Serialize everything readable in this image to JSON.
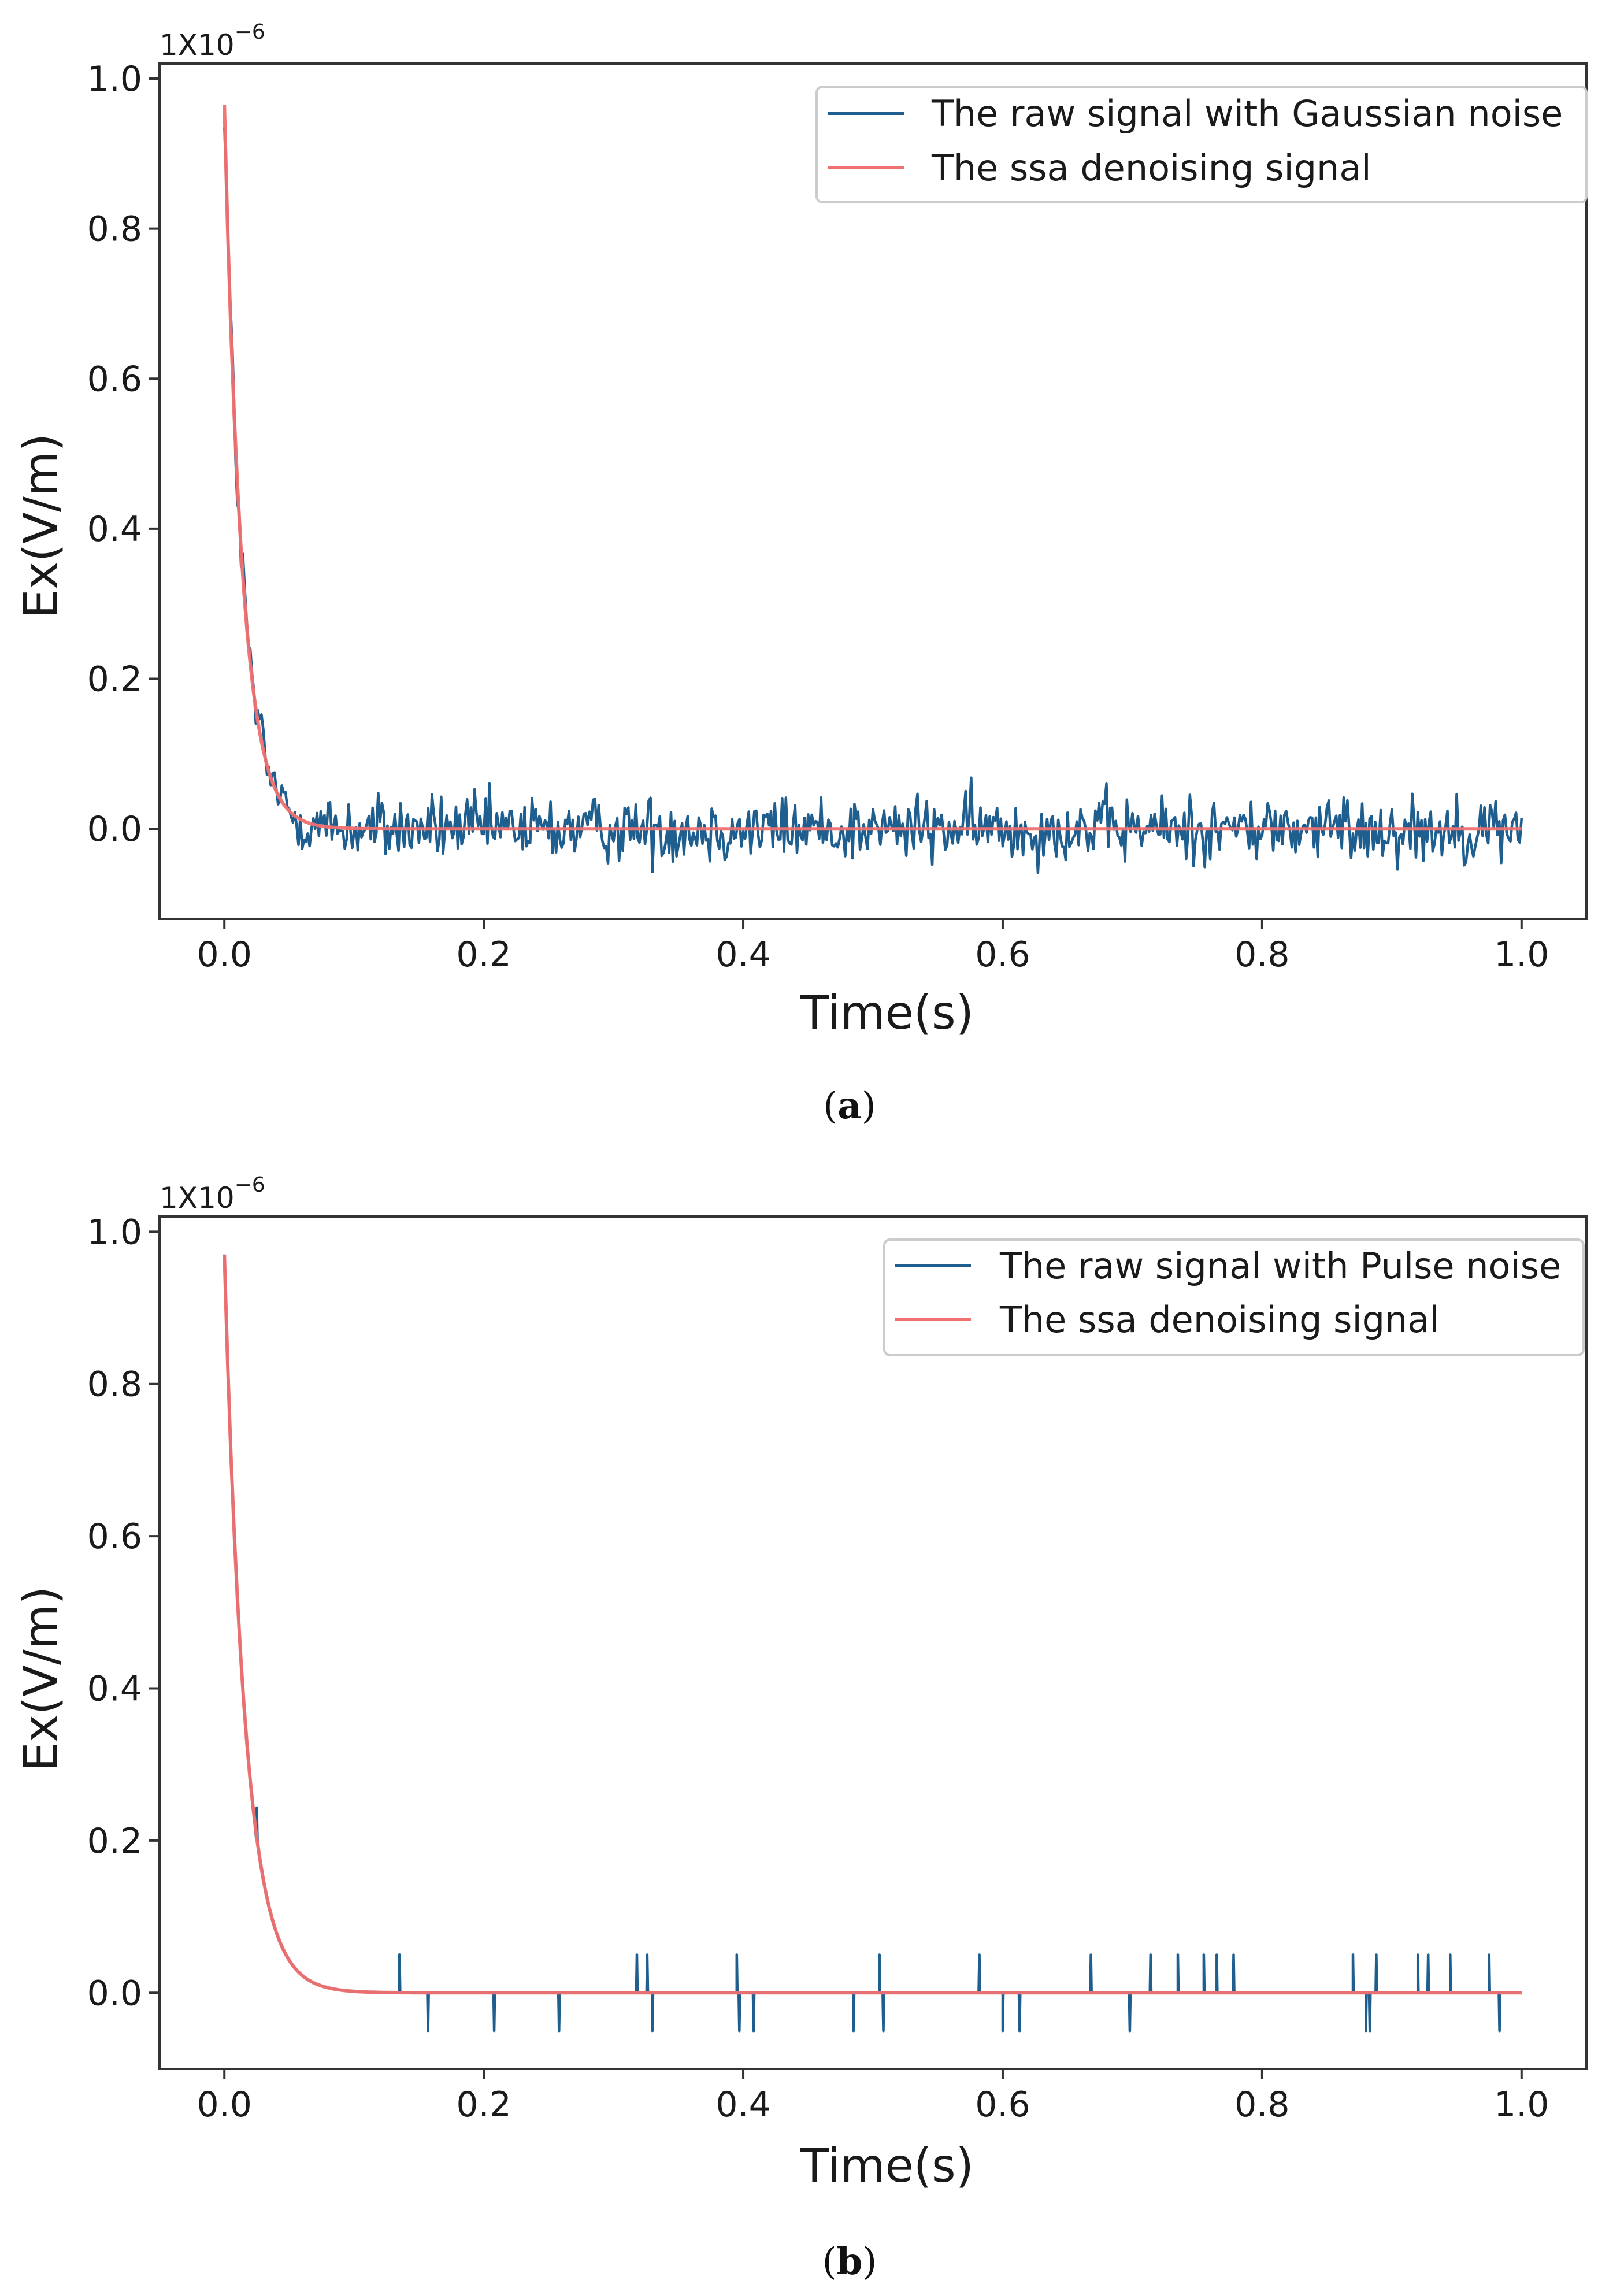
{
  "colors": {
    "raw_signal": "#1f5f8f",
    "denoised_signal": "#f07070",
    "axis": "#333333",
    "legend_border": "#cccccc"
  },
  "chart_data": [
    {
      "type": "line",
      "panel": "a",
      "caption": "a",
      "xlabel": "Time(s)",
      "ylabel": "Ex(V/m)",
      "y_multiplier_base": "1X10",
      "y_multiplier_exponent": "−6",
      "xlim": [
        -0.05,
        1.05
      ],
      "ylim": [
        -0.12,
        1.02
      ],
      "xticks": [
        0.0,
        0.2,
        0.4,
        0.6,
        0.8,
        1.0
      ],
      "xtick_labels": [
        "0.0",
        "0.2",
        "0.4",
        "0.6",
        "0.8",
        "1.0"
      ],
      "yticks": [
        0.0,
        0.2,
        0.4,
        0.6,
        0.8,
        1.0
      ],
      "ytick_labels": [
        "0.0",
        "0.2",
        "0.4",
        "0.6",
        "0.8",
        "1.0"
      ],
      "legend_position": "upper-right",
      "series": [
        {
          "name": "The raw signal with Gaussian noise",
          "color_key": "raw_signal",
          "model": "decay_plus_gaussian_noise",
          "amplitude": 0.965,
          "decay_time_s": 0.0135,
          "noise_std": 0.022,
          "noise_range": [
            -0.07,
            0.09
          ],
          "samples": 700,
          "x_range": [
            0.0,
            1.0
          ]
        },
        {
          "name": "The ssa denoising signal",
          "color_key": "denoised_signal",
          "model": "exponential_decay",
          "amplitude": 0.965,
          "decay_time_s": 0.0135,
          "samples": 400,
          "x_range": [
            0.0,
            1.0
          ]
        }
      ]
    },
    {
      "type": "line",
      "panel": "b",
      "caption": "b",
      "xlabel": "Time(s)",
      "ylabel": "Ex(V/m)",
      "y_multiplier_base": "1X10",
      "y_multiplier_exponent": "−6",
      "xlim": [
        -0.05,
        1.05
      ],
      "ylim": [
        -0.1,
        1.02
      ],
      "xticks": [
        0.0,
        0.2,
        0.4,
        0.6,
        0.8,
        1.0
      ],
      "xtick_labels": [
        "0.0",
        "0.2",
        "0.4",
        "0.6",
        "0.8",
        "1.0"
      ],
      "yticks": [
        0.0,
        0.2,
        0.4,
        0.6,
        0.8,
        1.0
      ],
      "ytick_labels": [
        "0.0",
        "0.2",
        "0.4",
        "0.6",
        "0.8",
        "1.0"
      ],
      "legend_position": "upper-right",
      "series": [
        {
          "name": "The raw signal with Pulse noise",
          "color_key": "raw_signal",
          "model": "decay_plus_pulses",
          "amplitude": 0.97,
          "decay_time_s": 0.016,
          "samples": 400,
          "x_range": [
            0.0,
            1.0
          ],
          "pulses": [
            {
              "t": 0.025,
              "dy": 0.04
            },
            {
              "t": 0.135,
              "dy": 0.05
            },
            {
              "t": 0.157,
              "dy": -0.05
            },
            {
              "t": 0.208,
              "dy": -0.05
            },
            {
              "t": 0.258,
              "dy": -0.05
            },
            {
              "t": 0.318,
              "dy": 0.05
            },
            {
              "t": 0.326,
              "dy": 0.05
            },
            {
              "t": 0.33,
              "dy": -0.05
            },
            {
              "t": 0.395,
              "dy": 0.05
            },
            {
              "t": 0.397,
              "dy": -0.05
            },
            {
              "t": 0.408,
              "dy": -0.05
            },
            {
              "t": 0.485,
              "dy": -0.05
            },
            {
              "t": 0.505,
              "dy": 0.05
            },
            {
              "t": 0.508,
              "dy": -0.05
            },
            {
              "t": 0.582,
              "dy": 0.05
            },
            {
              "t": 0.6,
              "dy": -0.05
            },
            {
              "t": 0.613,
              "dy": -0.05
            },
            {
              "t": 0.668,
              "dy": 0.05
            },
            {
              "t": 0.698,
              "dy": -0.05
            },
            {
              "t": 0.714,
              "dy": 0.05
            },
            {
              "t": 0.735,
              "dy": 0.05
            },
            {
              "t": 0.755,
              "dy": 0.05
            },
            {
              "t": 0.765,
              "dy": 0.05
            },
            {
              "t": 0.778,
              "dy": 0.05
            },
            {
              "t": 0.87,
              "dy": 0.05
            },
            {
              "t": 0.88,
              "dy": -0.05
            },
            {
              "t": 0.883,
              "dy": -0.05
            },
            {
              "t": 0.888,
              "dy": 0.05
            },
            {
              "t": 0.92,
              "dy": 0.05
            },
            {
              "t": 0.928,
              "dy": 0.05
            },
            {
              "t": 0.945,
              "dy": 0.05
            },
            {
              "t": 0.975,
              "dy": 0.05
            },
            {
              "t": 0.983,
              "dy": -0.05
            }
          ]
        },
        {
          "name": "The ssa denoising signal",
          "color_key": "denoised_signal",
          "model": "exponential_decay",
          "amplitude": 0.97,
          "decay_time_s": 0.016,
          "samples": 400,
          "x_range": [
            0.0,
            1.0
          ]
        }
      ]
    }
  ]
}
